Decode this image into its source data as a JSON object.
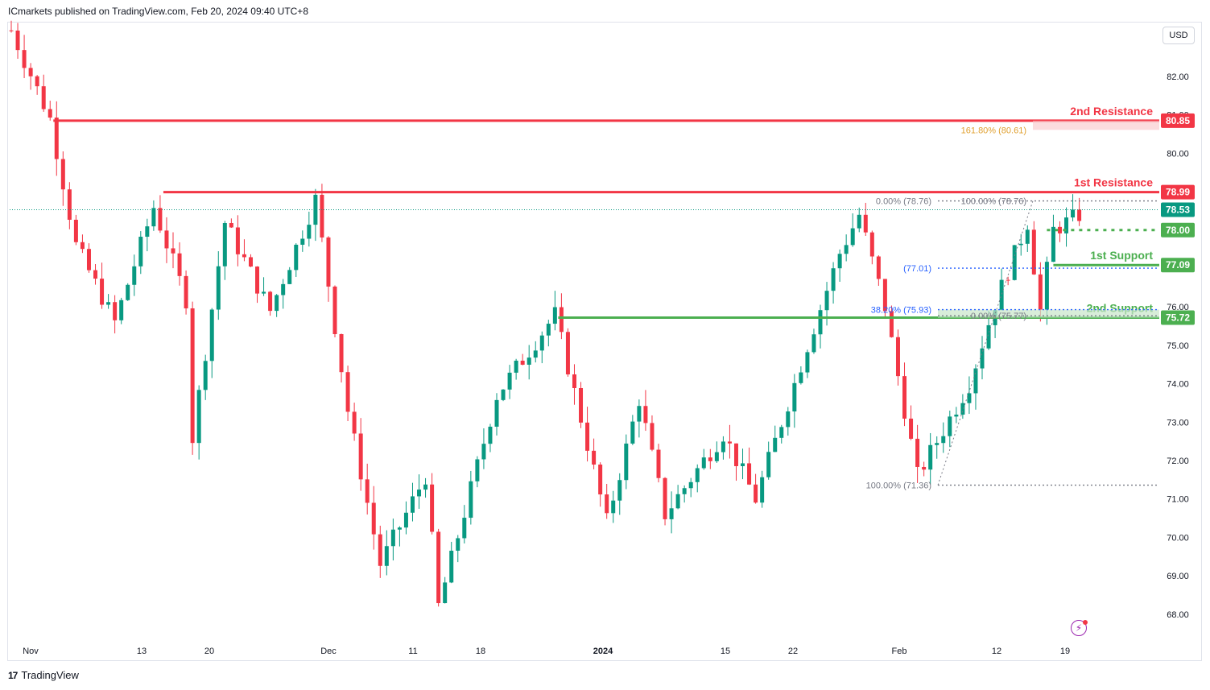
{
  "header": {
    "published_by": "ICmarkets published on TradingView.com, Feb 20, 2024 09:40 UTC+8"
  },
  "currency_button": "USD",
  "brand": {
    "logo": "17",
    "name": "TradingView"
  },
  "icons": {
    "bolt": "lightning-bolt-icon"
  },
  "colors": {
    "up": "#089981",
    "down": "#f23645",
    "resistance": "#f23645",
    "support": "#4caf50",
    "fib": "#787b86",
    "fib_blue": "#2962ff",
    "fib_orange": "#e0a030"
  },
  "chart_data": {
    "type": "candlestick",
    "title": "",
    "y_ticks": [
      "82.00",
      "81.00",
      "80.00",
      "76.00",
      "75.00",
      "74.00",
      "73.00",
      "72.00",
      "71.00",
      "70.00",
      "69.00",
      "68.00"
    ],
    "x_ticks": [
      "Nov",
      "13",
      "20",
      "Dec",
      "11",
      "18",
      "2024",
      "15",
      "22",
      "Feb",
      "12",
      "19"
    ],
    "ylim": [
      67.3,
      83.5
    ],
    "price_path": [
      {
        "t": 0,
        "p": 83.2
      },
      {
        "t": 6,
        "p": 80.9
      },
      {
        "t": 10,
        "p": 77.6
      },
      {
        "t": 16,
        "p": 75.6
      },
      {
        "t": 22,
        "p": 78.6
      },
      {
        "t": 27,
        "p": 76.2
      },
      {
        "t": 28,
        "p": 72.6
      },
      {
        "t": 33,
        "p": 78.2
      },
      {
        "t": 40,
        "p": 75.9
      },
      {
        "t": 47,
        "p": 78.8
      },
      {
        "t": 52,
        "p": 73.3
      },
      {
        "t": 57,
        "p": 69.3
      },
      {
        "t": 64,
        "p": 71.6
      },
      {
        "t": 66,
        "p": 68.2
      },
      {
        "t": 75,
        "p": 73.7
      },
      {
        "t": 84,
        "p": 75.8
      },
      {
        "t": 92,
        "p": 70.4
      },
      {
        "t": 97,
        "p": 73.6
      },
      {
        "t": 101,
        "p": 70.6
      },
      {
        "t": 110,
        "p": 72.7
      },
      {
        "t": 115,
        "p": 71.0
      },
      {
        "t": 123,
        "p": 75.0
      },
      {
        "t": 128,
        "p": 77.4
      },
      {
        "t": 131,
        "p": 78.4
      },
      {
        "t": 135,
        "p": 76.0
      },
      {
        "t": 137,
        "p": 74.2
      },
      {
        "t": 140,
        "p": 71.6
      },
      {
        "t": 148,
        "p": 74.0
      },
      {
        "t": 152,
        "p": 76.1
      },
      {
        "t": 157,
        "p": 78.2
      },
      {
        "t": 159,
        "p": 75.9
      },
      {
        "t": 161,
        "p": 78.0
      },
      {
        "t": 165,
        "p": 78.4
      }
    ],
    "levels": [
      {
        "name": "2nd Resistance",
        "price": 80.85,
        "tag": "80.85",
        "kind": "resistance"
      },
      {
        "name": "1st Resistance",
        "price": 78.99,
        "tag": "78.99",
        "kind": "resistance"
      },
      {
        "name": "1st Support",
        "price": 77.09,
        "tag": "77.09",
        "kind": "support"
      },
      {
        "name": "2nd Support",
        "price": 75.72,
        "tag": "75.72",
        "kind": "support"
      }
    ],
    "current_price": {
      "price": 78.53,
      "tag": "78.53"
    },
    "pivot": {
      "price": 78.0,
      "tag": "78.00"
    },
    "fib_labels": [
      {
        "text": "0.00% (78.76)",
        "price": 78.76
      },
      {
        "text": "100.00% (78.76)",
        "price": 78.76
      },
      {
        "text": "161.80% (80.61)",
        "price": 80.61
      },
      {
        "text": "(77.01)",
        "price": 77.01
      },
      {
        "text": "38.20% (75.93)",
        "price": 75.93
      },
      {
        "text": "0.00% (75.77)",
        "price": 75.77
      },
      {
        "text": "100.00% (71.36)",
        "price": 71.36
      }
    ]
  }
}
